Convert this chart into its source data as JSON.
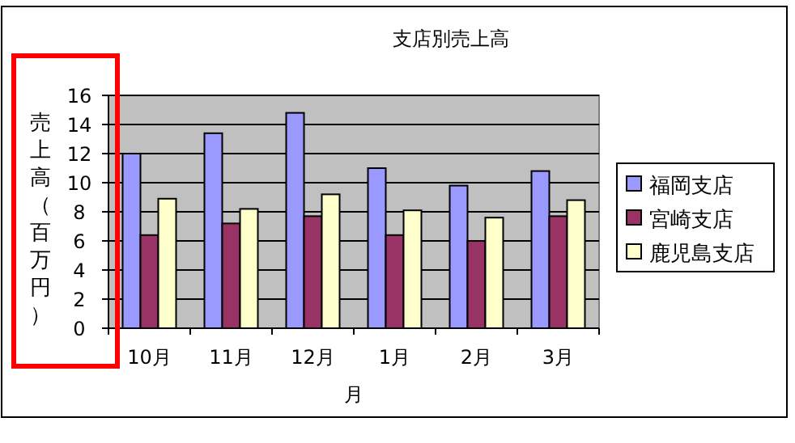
{
  "chart_data": {
    "type": "bar",
    "title": "支店別売上高",
    "xlabel": "月",
    "ylabel": "売上高（百万円）",
    "categories": [
      "10月",
      "11月",
      "12月",
      "1月",
      "2月",
      "3月"
    ],
    "series": [
      {
        "name": "福岡支店",
        "color": "#9999ff",
        "values": [
          12,
          13.4,
          14.8,
          11,
          9.8,
          10.8
        ]
      },
      {
        "name": "宮崎支店",
        "color": "#993366",
        "values": [
          6.4,
          7.2,
          7.7,
          6.4,
          6,
          7.7
        ]
      },
      {
        "name": "鹿児島支店",
        "color": "#ffffcc",
        "values": [
          8.9,
          8.2,
          9.2,
          8.1,
          7.6,
          8.8
        ]
      }
    ],
    "ylim": [
      0,
      16
    ],
    "yticks": [
      0,
      2,
      4,
      6,
      8,
      10,
      12,
      14,
      16
    ],
    "grid": "y",
    "legend": "right"
  }
}
